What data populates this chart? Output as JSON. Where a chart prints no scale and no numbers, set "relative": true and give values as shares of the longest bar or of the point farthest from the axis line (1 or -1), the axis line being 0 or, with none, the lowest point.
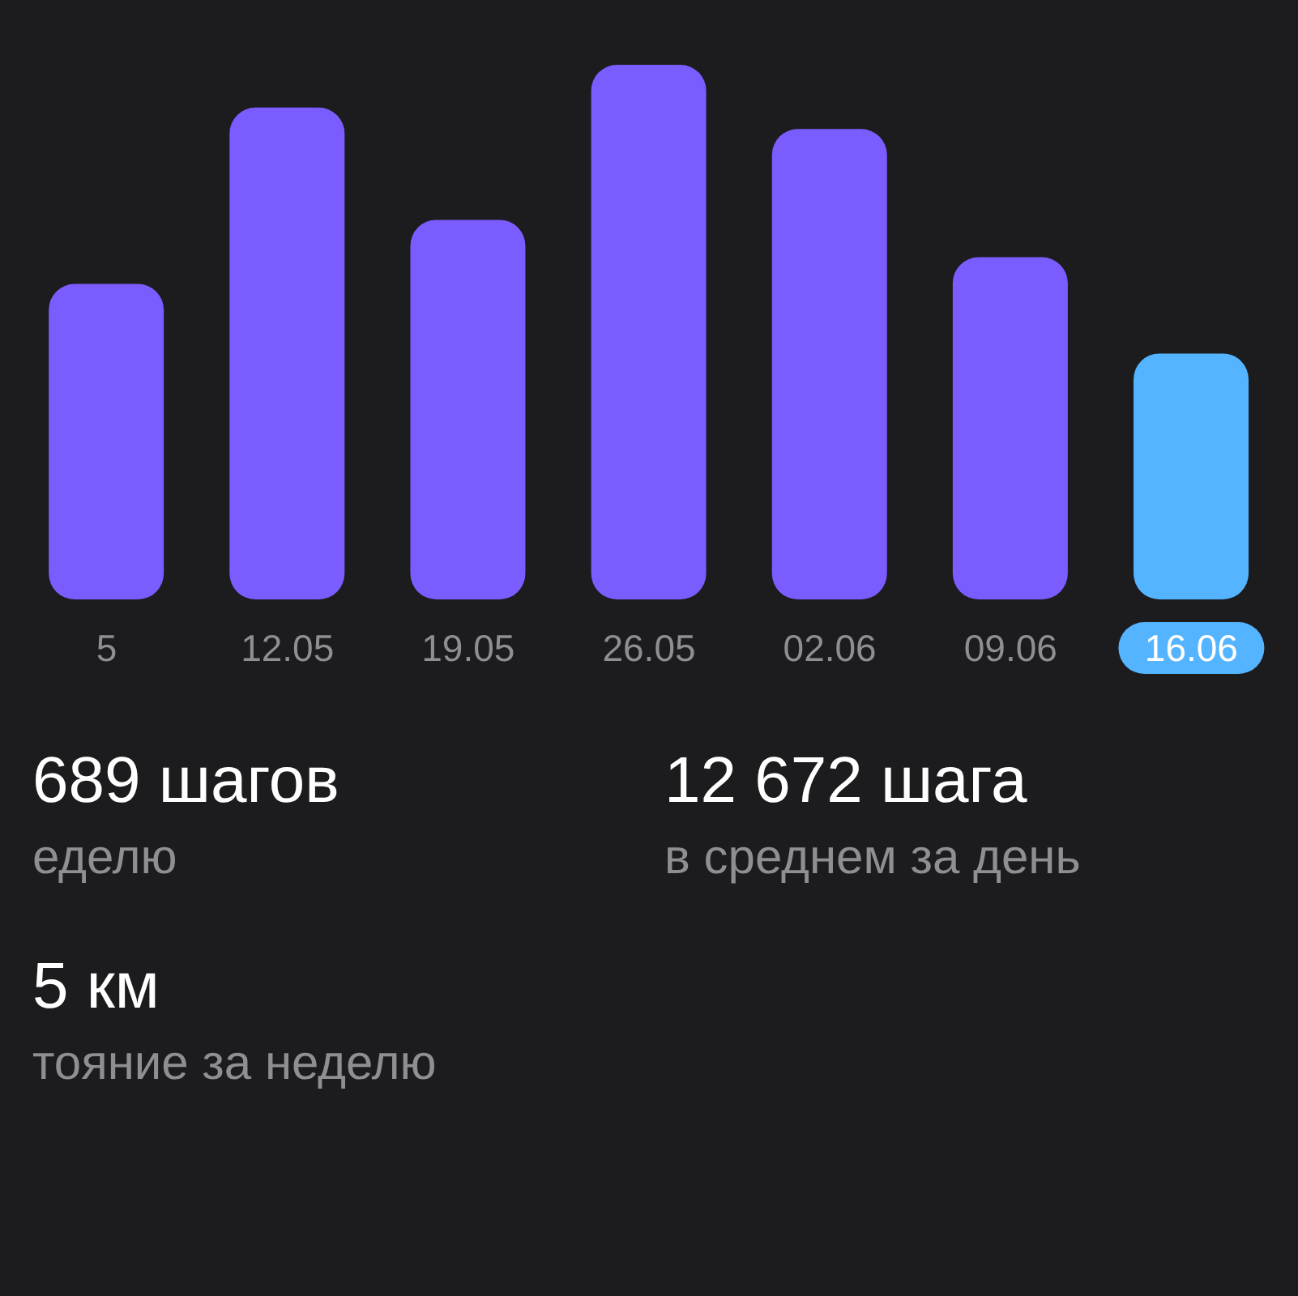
{
  "chart_data": {
    "type": "bar",
    "relative": true,
    "categories": [
      "5",
      "12.05",
      "19.05",
      "26.05",
      "02.06",
      "09.06",
      "16.06"
    ],
    "values": [
      0.59,
      0.92,
      0.71,
      1,
      0.88,
      0.64,
      0.46
    ],
    "colors": [
      "#7b5cff",
      "#7b5cff",
      "#7b5cff",
      "#7b5cff",
      "#7b5cff",
      "#7b5cff",
      "#55b4ff"
    ],
    "annotations": [
      "689 шагов",
      "еделю",
      "12 672 шага",
      "в среднем за день",
      "5 км",
      "тояние за неделю"
    ]
  }
}
